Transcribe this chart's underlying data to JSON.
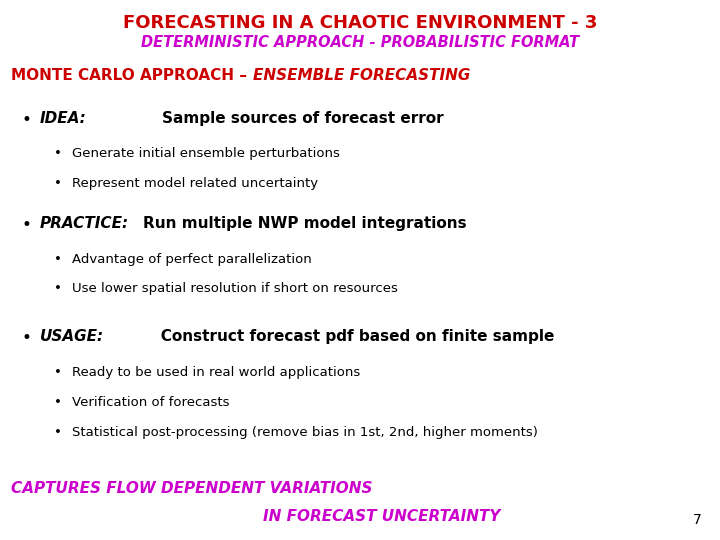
{
  "title1": "FORECASTING IN A CHAOTIC ENVIRONMENT - 3",
  "title1_color": "#cc0000",
  "title2": "DETERMINISTIC APPROACH - PROBABILISTIC FORMAT",
  "title2_color": "#cc00cc",
  "section_header": "MONTE CARLO APPROACH – ",
  "section_header_color": "#cc0000",
  "section_header_italic": "ENSEMBLE FORECASTING",
  "section_header_italic_color": "#cc0000",
  "bullets": [
    {
      "label": "IDEA:",
      "text": "            Sample sources of forecast error",
      "sub": [
        "Generate initial ensemble perturbations",
        "Represent model related uncertainty"
      ]
    },
    {
      "label": "PRACTICE:",
      "text": "    Run multiple NWP model integrations",
      "sub": [
        "Advantage of perfect parallelization",
        "Use lower spatial resolution if short on resources"
      ]
    },
    {
      "label": "USAGE:",
      "text": "           Construct forecast pdf based on finite sample",
      "sub": [
        "Ready to be used in real world applications",
        "Verification of forecasts",
        "Statistical post-processing (remove bias in 1st, 2nd, higher moments)"
      ]
    }
  ],
  "footer1": "CAPTURES FLOW DEPENDENT VARIATIONS",
  "footer2": "                                                IN FORECAST UNCERTAINTY",
  "footer_color": "#cc00cc",
  "page_number": "7",
  "bg_color": "#ffffff",
  "title1_fontsize": 13,
  "title2_fontsize": 10.5,
  "header_fontsize": 11,
  "bullet_label_fontsize": 11,
  "bullet_text_fontsize": 11,
  "sub_fontsize": 9.5,
  "footer_fontsize": 11
}
